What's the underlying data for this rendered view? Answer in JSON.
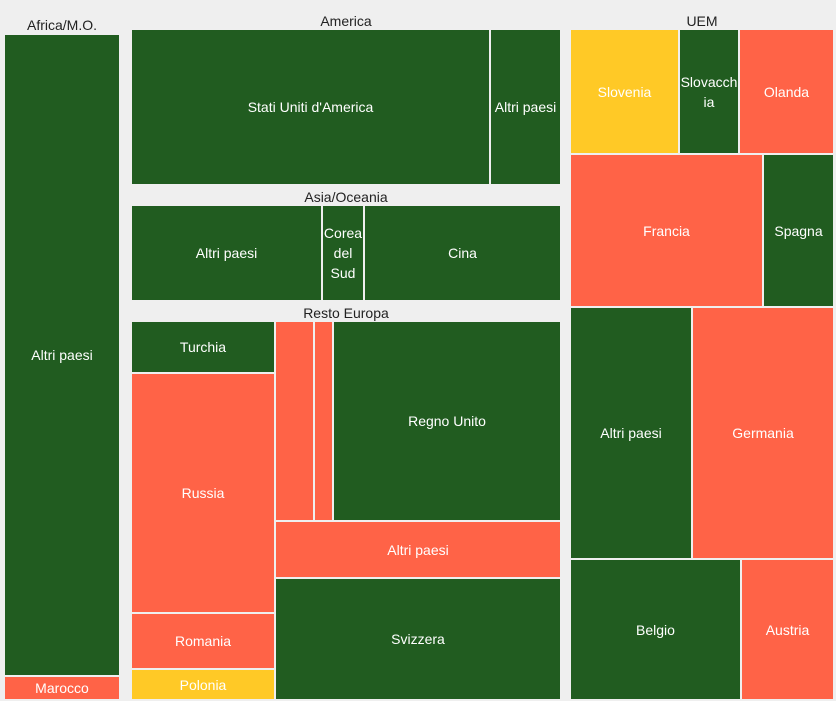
{
  "colors": {
    "green": "#215c20",
    "red": "#ff6347",
    "yellow": "#ffc926",
    "background": "#efefef"
  },
  "chart_data": {
    "type": "treemap",
    "groups": [
      {
        "name": "Africa/M.O.",
        "items": [
          {
            "label": "Altri paesi",
            "color": "green"
          },
          {
            "label": "Marocco",
            "color": "red"
          }
        ]
      },
      {
        "name": "America",
        "items": [
          {
            "label": "Stati Uniti d'America",
            "color": "green"
          },
          {
            "label": "Altri paesi",
            "color": "green"
          }
        ]
      },
      {
        "name": "Asia/Oceania",
        "items": [
          {
            "label": "Altri paesi",
            "color": "green"
          },
          {
            "label": "Corea del Sud",
            "color": "green"
          },
          {
            "label": "Cina",
            "color": "green"
          }
        ]
      },
      {
        "name": "Resto Europa",
        "items": [
          {
            "label": "Turchia",
            "color": "green"
          },
          {
            "label": "Russia",
            "color": "red"
          },
          {
            "label": "Romania",
            "color": "red"
          },
          {
            "label": "Polonia",
            "color": "yellow"
          },
          {
            "label": "",
            "color": "red"
          },
          {
            "label": "",
            "color": "red"
          },
          {
            "label": "Regno Unito",
            "color": "green"
          },
          {
            "label": "Altri paesi",
            "color": "red"
          },
          {
            "label": "Svizzera",
            "color": "green"
          }
        ]
      },
      {
        "name": "UEM",
        "items": [
          {
            "label": "Slovenia",
            "color": "yellow"
          },
          {
            "label": "Slovacchia",
            "color": "green"
          },
          {
            "label": "Olanda",
            "color": "red"
          },
          {
            "label": "Francia",
            "color": "red"
          },
          {
            "label": "Spagna",
            "color": "green"
          },
          {
            "label": "Altri paesi",
            "color": "green"
          },
          {
            "label": "Germania",
            "color": "red"
          },
          {
            "label": "Belgio",
            "color": "green"
          },
          {
            "label": "Austria",
            "color": "red"
          }
        ]
      }
    ]
  }
}
